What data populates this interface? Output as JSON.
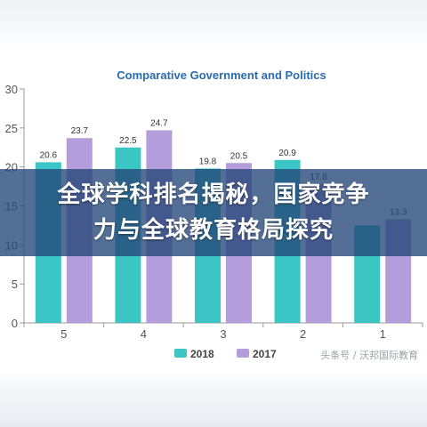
{
  "chart_data": {
    "type": "bar",
    "title": "Comparative Government and Politics",
    "categories": [
      "5",
      "4",
      "3",
      "2",
      "1"
    ],
    "series": [
      {
        "name": "2018",
        "color": "#3cc5c5",
        "values": [
          20.6,
          22.5,
          19.8,
          20.9,
          12.5
        ]
      },
      {
        "name": "2017",
        "color": "#b39ddb",
        "values": [
          23.7,
          24.7,
          20.5,
          17.8,
          13.3
        ]
      }
    ],
    "data_labels": [
      [
        "20.6",
        "22.5",
        "19.8",
        "20.9",
        ""
      ],
      [
        "23.7",
        "24.7",
        "20.5",
        "17.8",
        "13.3"
      ]
    ],
    "ylim": [
      0,
      30
    ],
    "yticks": [
      "0",
      "5",
      "10",
      "15",
      "20",
      "25",
      "30"
    ],
    "grid": false,
    "legend": "bottom-center"
  },
  "banner": {
    "line1": "全球学科排名揭秘，国家竞争",
    "line2": "力与全球教育格局探究"
  },
  "watermark": "头条号 / 沃邦国际教育"
}
